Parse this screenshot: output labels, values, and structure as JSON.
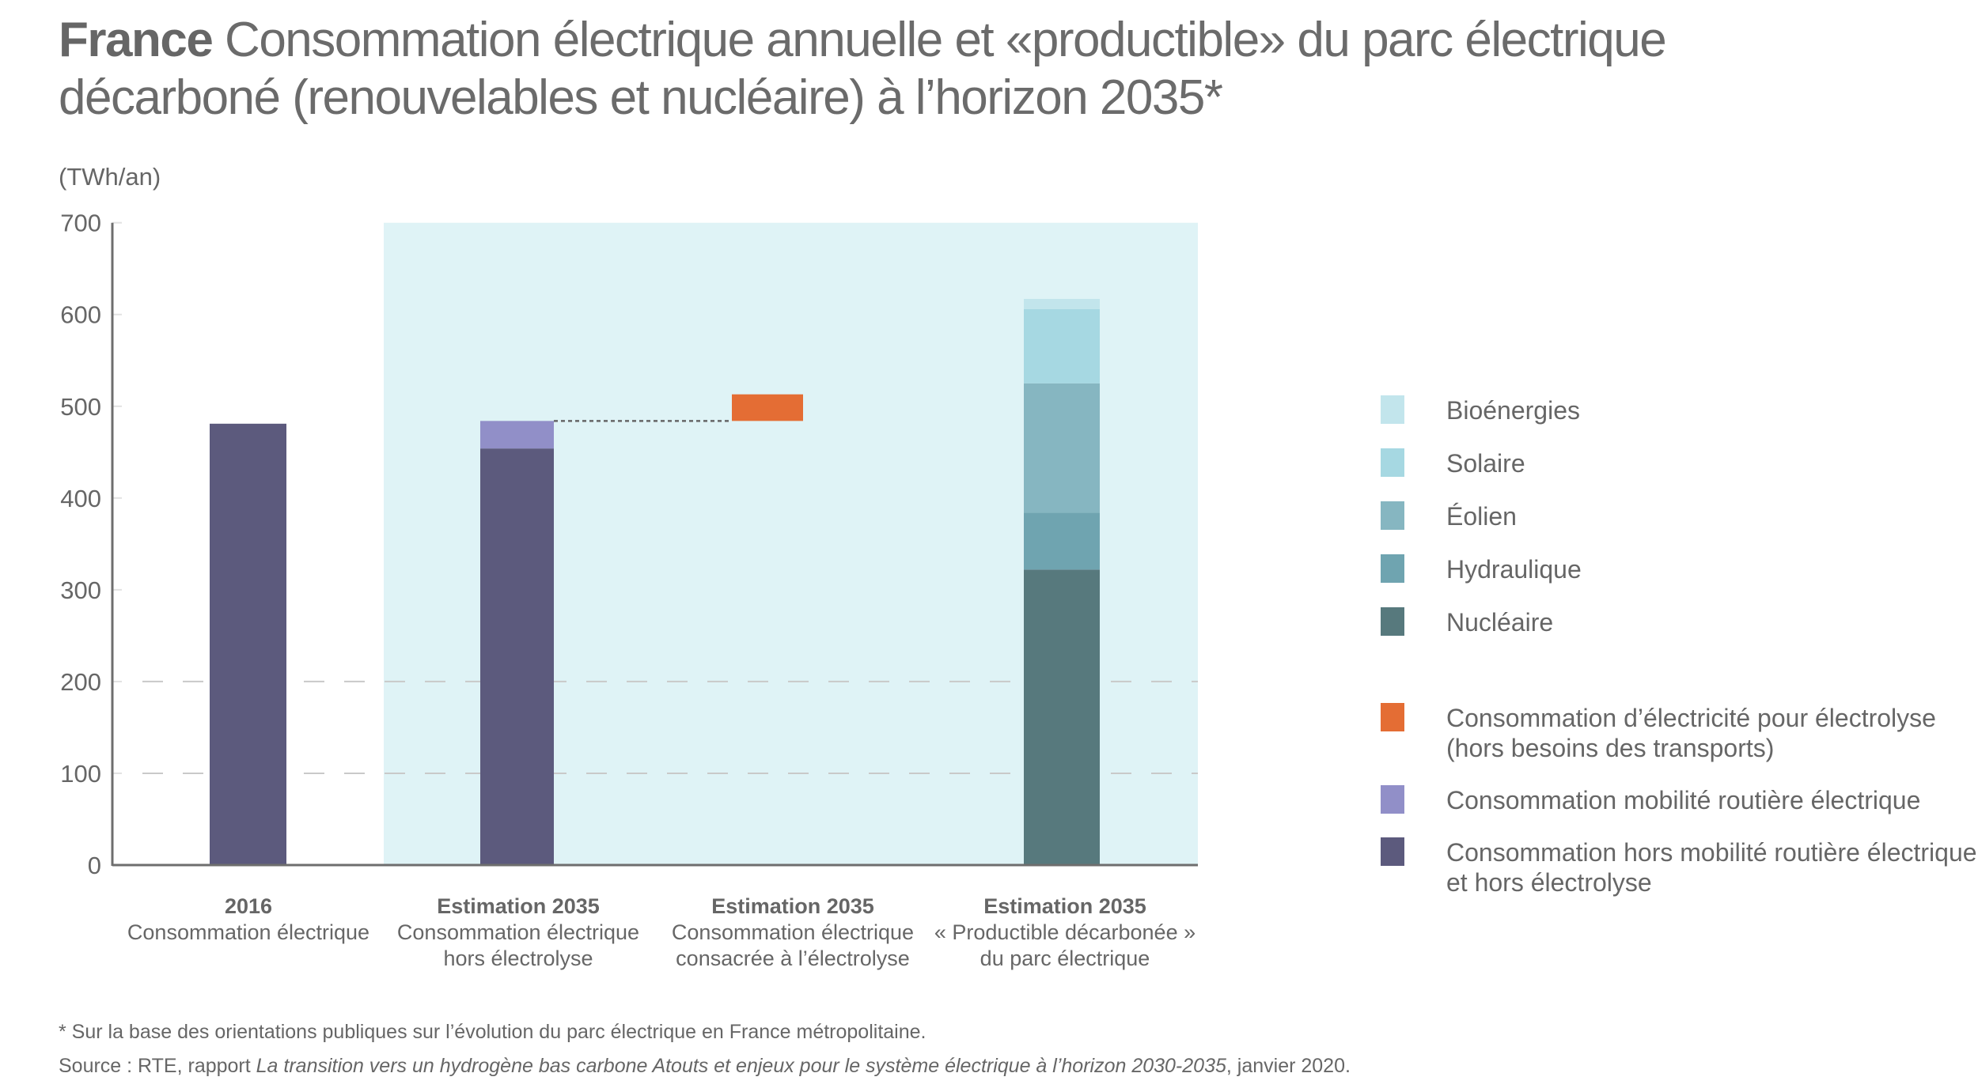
{
  "title": {
    "bold": "France",
    "text": " Consommation électrique annuelle et «productible» du parc électrique décarboné (renouvelables et nucléaire) à l’horizon 2035*"
  },
  "unit_label": "(TWh/an)",
  "chart_data": {
    "type": "bar",
    "stacked": true,
    "title": "France Consommation électrique annuelle et «productible» du parc électrique décarboné (renouvelables et nucléaire) à l’horizon 2035*",
    "ylabel": "(TWh/an)",
    "xlabel": "",
    "ylim": [
      0,
      700
    ],
    "yticks": [
      0,
      100,
      200,
      300,
      400,
      500,
      600,
      700
    ],
    "dashed_gridlines": [
      100,
      200
    ],
    "highlight_panel": {
      "from_category": 1,
      "to_category": 3,
      "color": "#dff3f6"
    },
    "categories": [
      {
        "bold": "2016",
        "lines": [
          "Consommation électrique"
        ]
      },
      {
        "bold": "Estimation 2035",
        "lines": [
          "Consommation électrique",
          "hors électrolyse"
        ]
      },
      {
        "bold": "Estimation 2035",
        "lines": [
          "Consommation électrique",
          "consacrée à l’électrolyse"
        ]
      },
      {
        "bold": "Estimation 2035",
        "lines": [
          "« Productible décarbonée »",
          "du parc électrique"
        ]
      }
    ],
    "bars": [
      {
        "category": 0,
        "segments": [
          {
            "series": "Consommation hors mobilité routière électrique et hors électrolyse",
            "base": 0,
            "value": 481
          }
        ]
      },
      {
        "category": 1,
        "segments": [
          {
            "series": "Consommation hors mobilité routière électrique et hors électrolyse",
            "base": 0,
            "value": 454
          },
          {
            "series": "Consommation mobilité routière électrique",
            "base": 454,
            "value": 30
          }
        ]
      },
      {
        "category": 2,
        "segments": [
          {
            "series": "Consommation d’électricité pour électrolyse (hors besoins des transports)",
            "base": 484,
            "value": 29
          }
        ]
      },
      {
        "category": 3,
        "segments": [
          {
            "series": "Nucléaire",
            "base": 0,
            "value": 322
          },
          {
            "series": "Hydraulique",
            "base": 322,
            "value": 62
          },
          {
            "series": "Éolien",
            "base": 384,
            "value": 141
          },
          {
            "series": "Solaire",
            "base": 525,
            "value": 81
          },
          {
            "series": "Bioénergies",
            "base": 606,
            "value": 11
          }
        ]
      }
    ],
    "connector": {
      "from_category": 1,
      "to_category": 2,
      "value": 484,
      "style": "dotted"
    },
    "series": [
      {
        "name": "Bioénergies",
        "color": "#c2e5ec"
      },
      {
        "name": "Solaire",
        "color": "#a6d8e2"
      },
      {
        "name": "Éolien",
        "color": "#86b6c1"
      },
      {
        "name": "Hydraulique",
        "color": "#6fa4b0"
      },
      {
        "name": "Nucléaire",
        "color": "#57797d"
      },
      {
        "name": "Consommation d’électricité pour électrolyse (hors besoins des transports)",
        "color": "#e46d34"
      },
      {
        "name": "Consommation mobilité routière électrique",
        "color": "#918fc8"
      },
      {
        "name": "Consommation hors mobilité routière électrique et hors électrolyse",
        "color": "#5c5a7d"
      }
    ],
    "legend": "right"
  },
  "legend": {
    "items": [
      {
        "label": "Bioénergies",
        "color": "#c2e5ec"
      },
      {
        "label": "Solaire",
        "color": "#a6d8e2"
      },
      {
        "label": "Éolien",
        "color": "#86b6c1"
      },
      {
        "label": "Hydraulique",
        "color": "#6fa4b0"
      },
      {
        "label": "Nucléaire",
        "color": "#57797d"
      },
      {
        "label": "Consommation d’électricité pour électrolyse\n(hors besoins des transports)",
        "color": "#e46d34"
      },
      {
        "label": "Consommation mobilité routière électrique",
        "color": "#918fc8"
      },
      {
        "label": "Consommation hors mobilité routière électrique\net hors électrolyse",
        "color": "#5c5a7d"
      }
    ]
  },
  "footer": {
    "note": "* Sur la base des orientations publiques sur l’évolution du parc électrique en France métropolitaine.",
    "source_prefix": "Source : RTE, rapport ",
    "source_title": "La transition vers un hydrogène bas carbone Atouts et enjeux pour le système électrique à l’horizon 2030-2035",
    "source_suffix": ", janvier 2020."
  }
}
